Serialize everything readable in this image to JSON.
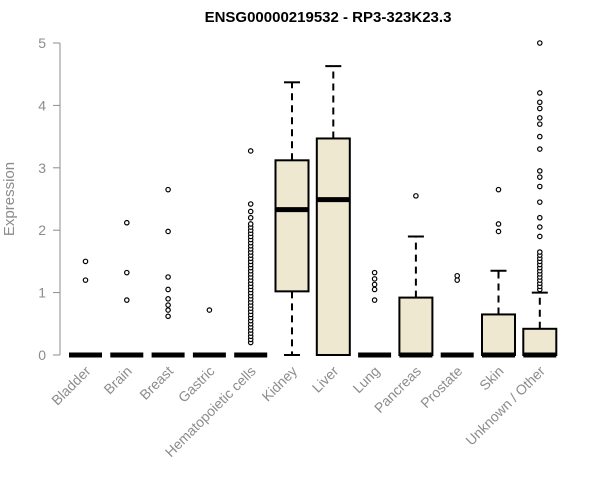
{
  "chart_data": {
    "type": "boxplot",
    "title": "ENSG00000219532 - RP3-323K23.3",
    "xlabel": "",
    "ylabel": "Expression",
    "ylim": [
      0,
      5
    ],
    "yticks": [
      "0",
      "1",
      "2",
      "3",
      "4",
      "5"
    ],
    "box_fill": "#EFE8D0",
    "line_color": "#000000",
    "categories": [
      "Bladder",
      "Brain",
      "Breast",
      "Gastric",
      "Hematopoietic cells",
      "Kidney",
      "Liver",
      "Lung",
      "Pancreas",
      "Prostate",
      "Skin",
      "Unknown / Other"
    ],
    "boxes": [
      {
        "min": 0,
        "q1": 0,
        "median": 0,
        "q3": 0,
        "max": 0,
        "outliers": [
          1.2,
          1.5
        ]
      },
      {
        "min": 0,
        "q1": 0,
        "median": 0,
        "q3": 0,
        "max": 0,
        "outliers": [
          0.88,
          1.32,
          2.12
        ]
      },
      {
        "min": 0,
        "q1": 0,
        "median": 0,
        "q3": 0,
        "max": 0,
        "outliers": [
          0.62,
          0.72,
          0.8,
          0.9,
          1.05,
          1.25,
          1.98,
          2.65
        ]
      },
      {
        "min": 0,
        "q1": 0,
        "median": 0,
        "q3": 0,
        "max": 0,
        "outliers": [
          0.72
        ]
      },
      {
        "min": 0,
        "q1": 0,
        "median": 0,
        "q3": 0,
        "max": 0,
        "outliers": [
          0.2,
          0.25,
          0.3,
          0.35,
          0.4,
          0.45,
          0.5,
          0.55,
          0.6,
          0.65,
          0.7,
          0.75,
          0.8,
          0.85,
          0.9,
          0.95,
          1.0,
          1.05,
          1.1,
          1.15,
          1.2,
          1.25,
          1.3,
          1.35,
          1.4,
          1.45,
          1.5,
          1.55,
          1.6,
          1.65,
          1.7,
          1.75,
          1.8,
          1.85,
          1.9,
          1.95,
          2.0,
          2.05,
          2.1,
          2.2,
          2.3,
          2.42,
          3.27
        ]
      },
      {
        "min": 0,
        "q1": 1.02,
        "median": 2.33,
        "q3": 3.12,
        "max": 4.37,
        "outliers": []
      },
      {
        "min": 0,
        "q1": 0,
        "median": 2.49,
        "q3": 3.47,
        "max": 4.63,
        "outliers": []
      },
      {
        "min": 0,
        "q1": 0,
        "median": 0,
        "q3": 0,
        "max": 0,
        "outliers": [
          0.88,
          1.05,
          1.13,
          1.22,
          1.32
        ]
      },
      {
        "min": 0,
        "q1": 0,
        "median": 0,
        "q3": 0.92,
        "max": 1.9,
        "outliers": [
          2.55
        ]
      },
      {
        "min": 0,
        "q1": 0,
        "median": 0,
        "q3": 0,
        "max": 0,
        "outliers": [
          1.2,
          1.27
        ]
      },
      {
        "min": 0,
        "q1": 0,
        "median": 0,
        "q3": 0.65,
        "max": 1.35,
        "outliers": [
          1.98,
          2.1,
          2.65
        ]
      },
      {
        "min": 0,
        "q1": 0,
        "median": 0,
        "q3": 0.42,
        "max": 1.0,
        "outliers": [
          1.05,
          1.1,
          1.15,
          1.2,
          1.25,
          1.3,
          1.35,
          1.4,
          1.45,
          1.5,
          1.55,
          1.6,
          1.65,
          1.9,
          2.05,
          2.2,
          2.45,
          2.7,
          2.85,
          2.95,
          3.3,
          3.5,
          3.7,
          3.8,
          3.95,
          4.05,
          4.2,
          5.0
        ]
      }
    ]
  }
}
